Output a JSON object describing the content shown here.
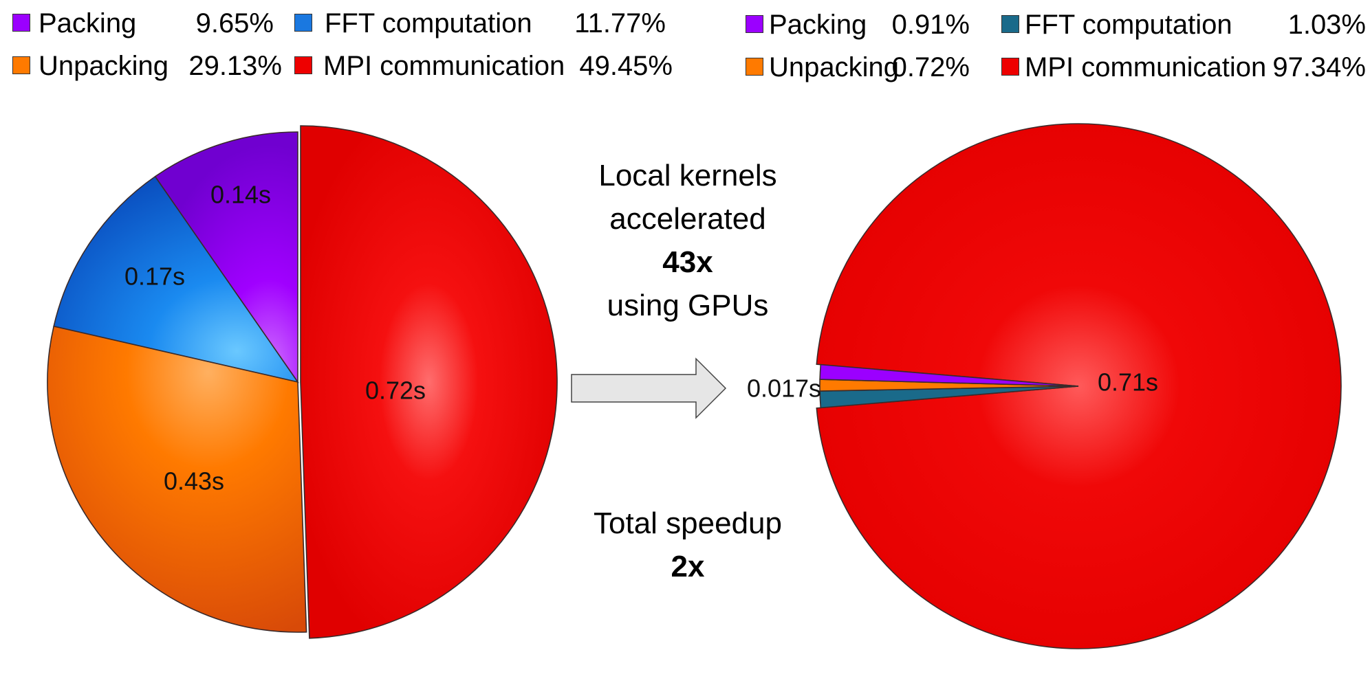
{
  "chart_data": [
    {
      "type": "pie",
      "categories": [
        "Packing",
        "FFT computation",
        "Unpacking",
        "MPI communication"
      ],
      "percentages": [
        9.65,
        11.77,
        29.13,
        49.45
      ],
      "values_s": [
        0.14,
        0.17,
        0.43,
        0.72
      ],
      "slice_labels": [
        "0.14s",
        "0.17s",
        "0.43s",
        "0.72s"
      ],
      "legend": [
        {
          "label": "Packing",
          "value": "9.65%",
          "color": "#9b00ff"
        },
        {
          "label": "FFT computation",
          "value": "11.77%",
          "color": "#1a78e0"
        },
        {
          "label": "Unpacking",
          "value": "29.13%",
          "color": "#ff7a00"
        },
        {
          "label": "MPI communication",
          "value": "49.45%",
          "color": "#ee0000"
        }
      ]
    },
    {
      "type": "pie",
      "categories": [
        "Packing",
        "FFT computation",
        "Unpacking",
        "MPI communication"
      ],
      "percentages": [
        0.91,
        1.03,
        0.72,
        97.34
      ],
      "slice_labels": [
        "0.017s",
        "0.71s"
      ],
      "legend": [
        {
          "label": "Packing",
          "value": "0.91%",
          "color": "#9b00ff"
        },
        {
          "label": "FFT computation",
          "value": "1.03%",
          "color": "#1a6a8a"
        },
        {
          "label": "Unpacking",
          "value": "0.72%",
          "color": "#ff7a00"
        },
        {
          "label": "MPI communication",
          "value": "97.34%",
          "color": "#ee0000"
        }
      ]
    }
  ],
  "middle": {
    "line1": "Local kernels",
    "line2": "accelerated",
    "line3": "43x",
    "line4": "using GPUs",
    "line5": "Total speedup",
    "line6": "2x"
  },
  "colors": {
    "packing": "#9b00ff",
    "fft": "#1a78e0",
    "fft_right": "#1a6a8a",
    "unpacking": "#ff7a00",
    "mpi": "#ee0000",
    "arrow_fill": "#e6e6e6"
  }
}
